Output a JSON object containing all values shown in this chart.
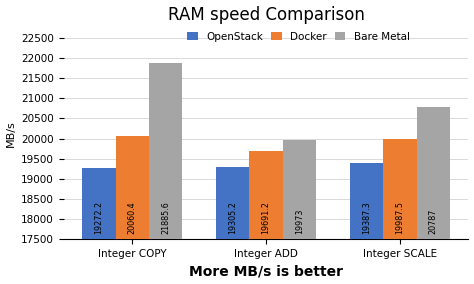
{
  "title": "RAM speed Comparison",
  "xlabel": "More MB/s is better",
  "ylabel": "MB/s",
  "categories": [
    "Integer COPY",
    "Integer ADD",
    "Integer SCALE"
  ],
  "series": {
    "OpenStack": [
      19272.18,
      19305.25,
      19387.26
    ],
    "Docker": [
      20060.37,
      19691.25,
      19987.47
    ],
    "Bare Metal": [
      21885.57,
      19972.97,
      20787
    ]
  },
  "colors": {
    "OpenStack": "#4472C4",
    "Docker": "#ED7D31",
    "Bare Metal": "#A5A5A5"
  },
  "ylim": [
    17500,
    22750
  ],
  "yticks": [
    17500,
    18000,
    18500,
    19000,
    19500,
    20000,
    20500,
    21000,
    21500,
    22000,
    22500
  ],
  "bar_width": 0.25,
  "background_color": "#FFFFFF",
  "grid_color": "#D9D9D9",
  "title_fontsize": 12,
  "axis_label_fontsize": 8,
  "xlabel_fontsize": 10,
  "tick_fontsize": 7.5,
  "legend_fontsize": 7.5,
  "value_fontsize": 5.8
}
